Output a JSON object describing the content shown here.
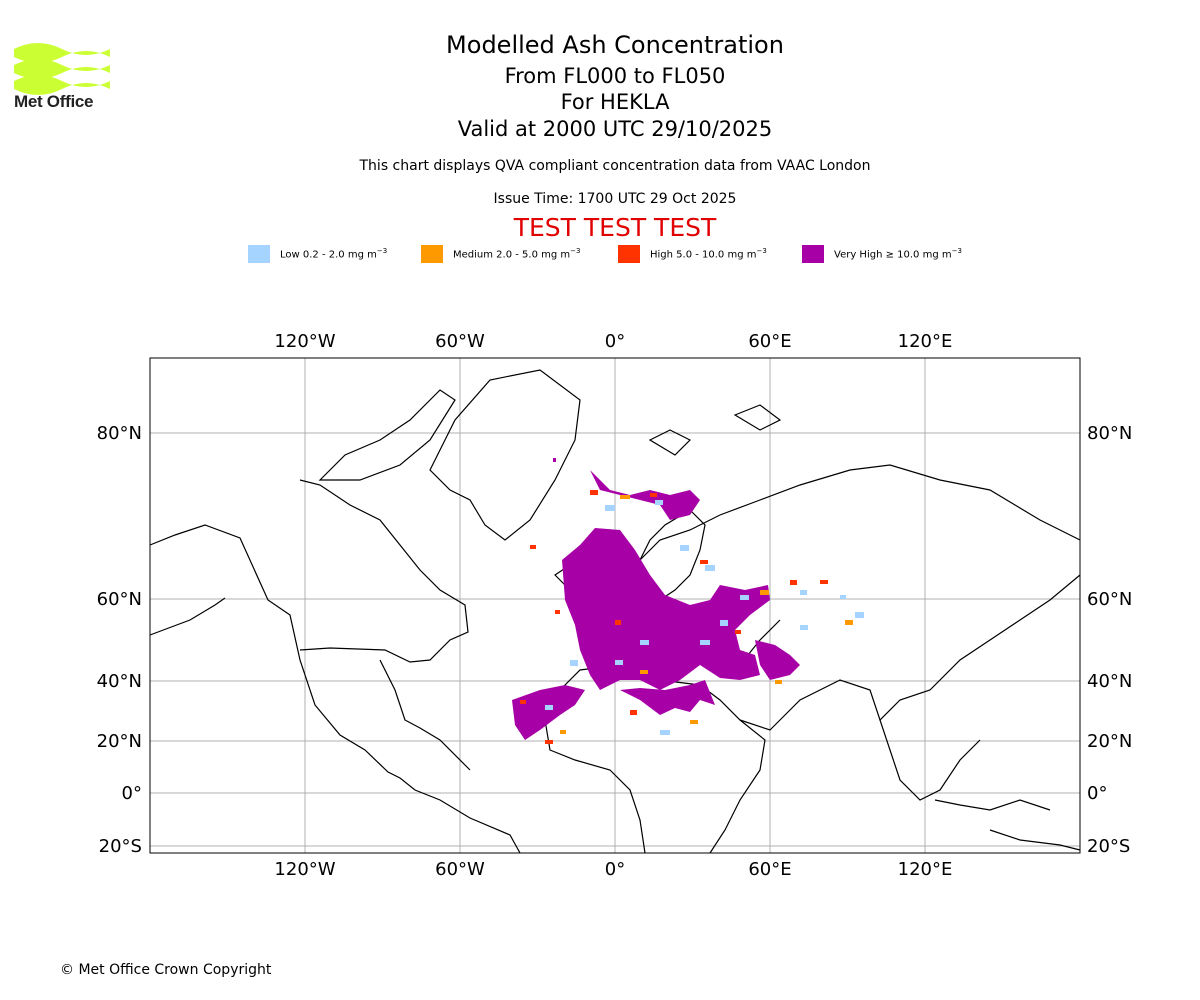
{
  "brand": {
    "name": "Met Office",
    "color": "#ccff33"
  },
  "title": {
    "line1": "Modelled Ash Concentration",
    "line2": "From FL000 to FL050",
    "line3": "For HEKLA",
    "line4": "Valid at 2000 UTC 29/10/2025"
  },
  "subtitle": "This chart displays QVA compliant concentration data from VAAC London",
  "issue_time": "Issue Time: 1700 UTC 29 Oct 2025",
  "test_banner": "TEST TEST TEST",
  "legend": [
    {
      "text": "Low 0.2 - 2.0 mg m",
      "sup": "−3",
      "color": "#a4d4ff"
    },
    {
      "text": "Medium 2.0 - 5.0 mg m",
      "sup": "−3",
      "color": "#ff9900"
    },
    {
      "text": "High 5.0 - 10.0 mg m",
      "sup": "−3",
      "color": "#ff3300"
    },
    {
      "text": "Very High ≥ 10.0 mg m",
      "sup": "−3",
      "color": "#a600a6"
    }
  ],
  "map": {
    "lon_ticks": [
      "120°W",
      "60°W",
      "0°",
      "60°E",
      "120°E"
    ],
    "lat_ticks": [
      "80°N",
      "60°N",
      "40°N",
      "20°N",
      "0°",
      "20°S"
    ],
    "gridline_color": "#b0b0b0",
    "ash_colors": {
      "very_high": "#a600a6",
      "high": "#ff3300",
      "medium": "#ff9900",
      "low": "#a4d4ff"
    }
  },
  "copyright": "© Met Office Crown Copyright"
}
